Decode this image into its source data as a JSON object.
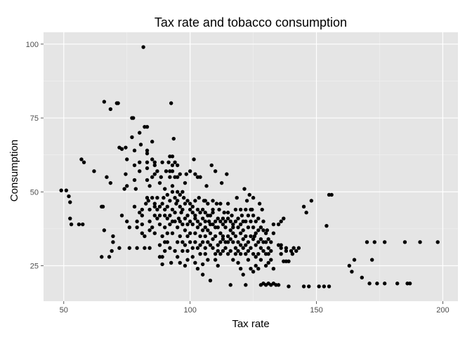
{
  "chart_data": {
    "type": "scatter",
    "title": "Tax rate and tobacco consumption",
    "xlabel": "Tax rate",
    "ylabel": "Consumption",
    "xlim": [
      42,
      206
    ],
    "ylim": [
      13,
      104
    ],
    "xticks": [
      50,
      100,
      150,
      200
    ],
    "yticks": [
      25,
      50,
      75,
      100
    ],
    "x_tick_labels": [
      "50",
      "100",
      "150",
      "200"
    ],
    "y_tick_labels": [
      "25",
      "50",
      "75",
      "100"
    ],
    "grid": true,
    "legend": "none",
    "colors": {
      "panel": "#e5e5e5",
      "grid_major": "#ffffff",
      "grid_minor": "#f2f2f2",
      "point": "#000000",
      "tick_text": "#4d4d4d"
    },
    "points": [
      [
        49,
        50.5
      ],
      [
        51,
        50.5
      ],
      [
        52,
        48.5
      ],
      [
        52.5,
        46.5
      ],
      [
        52.5,
        41
      ],
      [
        53,
        39
      ],
      [
        56,
        39
      ],
      [
        57,
        61
      ],
      [
        58,
        60
      ],
      [
        57.5,
        39
      ],
      [
        62,
        57
      ],
      [
        65,
        45
      ],
      [
        65.5,
        45
      ],
      [
        65,
        28
      ],
      [
        66,
        80.5
      ],
      [
        66,
        37
      ],
      [
        67,
        55
      ],
      [
        68,
        28
      ],
      [
        68.5,
        78
      ],
      [
        69,
        30
      ],
      [
        68.5,
        53
      ],
      [
        69.5,
        35
      ],
      [
        69.5,
        33
      ],
      [
        71,
        80
      ],
      [
        71.5,
        80
      ],
      [
        72,
        31
      ],
      [
        72,
        65
      ],
      [
        73,
        42
      ],
      [
        73,
        64.5
      ],
      [
        74,
        51
      ],
      [
        74.5,
        65
      ],
      [
        74.5,
        56
      ],
      [
        75,
        52
      ],
      [
        75,
        61
      ],
      [
        75,
        40
      ],
      [
        76,
        38
      ],
      [
        76,
        31
      ],
      [
        77,
        75
      ],
      [
        77.5,
        75
      ],
      [
        77,
        68.5
      ],
      [
        78,
        59
      ],
      [
        78,
        64
      ],
      [
        78,
        45
      ],
      [
        78,
        54
      ],
      [
        78.5,
        51
      ],
      [
        79,
        40
      ],
      [
        79,
        31
      ],
      [
        79,
        38
      ],
      [
        80,
        43
      ],
      [
        80,
        60
      ],
      [
        80,
        57
      ],
      [
        80,
        70
      ],
      [
        80.5,
        66
      ],
      [
        81,
        44
      ],
      [
        81,
        42
      ],
      [
        81,
        36
      ],
      [
        81,
        39
      ],
      [
        81.5,
        99
      ],
      [
        82,
        31
      ],
      [
        82,
        35
      ],
      [
        82,
        72
      ],
      [
        82.5,
        46
      ],
      [
        83,
        63
      ],
      [
        83,
        64
      ],
      [
        83,
        72
      ],
      [
        83,
        60
      ],
      [
        83,
        58
      ],
      [
        83,
        54
      ],
      [
        83,
        48
      ],
      [
        83.5,
        47
      ],
      [
        84,
        44
      ],
      [
        84,
        52
      ],
      [
        84,
        40
      ],
      [
        84,
        37
      ],
      [
        84,
        31
      ],
      [
        85,
        48
      ],
      [
        85,
        55
      ],
      [
        85,
        61
      ],
      [
        85,
        67
      ],
      [
        85,
        38
      ],
      [
        86,
        46
      ],
      [
        86,
        42
      ],
      [
        86,
        60
      ],
      [
        86,
        59
      ],
      [
        86,
        56
      ],
      [
        86,
        36
      ],
      [
        86,
        45
      ],
      [
        87,
        48
      ],
      [
        87,
        44
      ],
      [
        87,
        41
      ],
      [
        87,
        57
      ],
      [
        88,
        53
      ],
      [
        88,
        45
      ],
      [
        88,
        42
      ],
      [
        88,
        39
      ],
      [
        88,
        32
      ],
      [
        88,
        28
      ],
      [
        88.5,
        55
      ],
      [
        89,
        35
      ],
      [
        89,
        28
      ],
      [
        89,
        25.5
      ],
      [
        89,
        46
      ],
      [
        89,
        60
      ],
      [
        89.5,
        48
      ],
      [
        90,
        44
      ],
      [
        90,
        51
      ],
      [
        90,
        42
      ],
      [
        90,
        38
      ],
      [
        90,
        33
      ],
      [
        90,
        30
      ],
      [
        90.5,
        57
      ],
      [
        91,
        49
      ],
      [
        91,
        45
      ],
      [
        91,
        41
      ],
      [
        91,
        36
      ],
      [
        91,
        33
      ],
      [
        91.5,
        60
      ],
      [
        92,
        62
      ],
      [
        92,
        55
      ],
      [
        92,
        47
      ],
      [
        92,
        42
      ],
      [
        92,
        39
      ],
      [
        92,
        57
      ],
      [
        92,
        31
      ],
      [
        92.5,
        80
      ],
      [
        92.5,
        26
      ],
      [
        93,
        62
      ],
      [
        93,
        57
      ],
      [
        93,
        59
      ],
      [
        93,
        52
      ],
      [
        93,
        50
      ],
      [
        93,
        44
      ],
      [
        93,
        40
      ],
      [
        93,
        36
      ],
      [
        93.5,
        68
      ],
      [
        94,
        60
      ],
      [
        94,
        55
      ],
      [
        94,
        48
      ],
      [
        94,
        43
      ],
      [
        94,
        40
      ],
      [
        94,
        30
      ],
      [
        94.5,
        46
      ],
      [
        95,
        59
      ],
      [
        95,
        55
      ],
      [
        95,
        50
      ],
      [
        95,
        47
      ],
      [
        95,
        38
      ],
      [
        95,
        33
      ],
      [
        95,
        28
      ],
      [
        95.5,
        41
      ],
      [
        96,
        56
      ],
      [
        96,
        49
      ],
      [
        96,
        45
      ],
      [
        96,
        40
      ],
      [
        96,
        35
      ],
      [
        96,
        26
      ],
      [
        96.5,
        43
      ],
      [
        97,
        50
      ],
      [
        97,
        44
      ],
      [
        97,
        39
      ],
      [
        97,
        33
      ],
      [
        97,
        30
      ],
      [
        97.5,
        48
      ],
      [
        98,
        53
      ],
      [
        98,
        46
      ],
      [
        98,
        41
      ],
      [
        98,
        37
      ],
      [
        98,
        25
      ],
      [
        98,
        32
      ],
      [
        98.5,
        56
      ],
      [
        99,
        47
      ],
      [
        99,
        42
      ],
      [
        99,
        39
      ],
      [
        99,
        35
      ],
      [
        99,
        30
      ],
      [
        99,
        27
      ],
      [
        100,
        40
      ],
      [
        100,
        44
      ],
      [
        100,
        57
      ],
      [
        100,
        36
      ],
      [
        100,
        33
      ],
      [
        100,
        46
      ],
      [
        101,
        39
      ],
      [
        101,
        43
      ],
      [
        101,
        31
      ],
      [
        101,
        28
      ],
      [
        101,
        45
      ],
      [
        101.5,
        61
      ],
      [
        102,
        56
      ],
      [
        102,
        47
      ],
      [
        102,
        41
      ],
      [
        102,
        36
      ],
      [
        102,
        33
      ],
      [
        102,
        26
      ],
      [
        102,
        42
      ],
      [
        103,
        55
      ],
      [
        103,
        44
      ],
      [
        103,
        40
      ],
      [
        103,
        38
      ],
      [
        103,
        31
      ],
      [
        103,
        24
      ],
      [
        103.5,
        48
      ],
      [
        104,
        55
      ],
      [
        104,
        43
      ],
      [
        104,
        39
      ],
      [
        104,
        35
      ],
      [
        104,
        32
      ],
      [
        104,
        29
      ],
      [
        105,
        44
      ],
      [
        105,
        41
      ],
      [
        105,
        37
      ],
      [
        105,
        33
      ],
      [
        105,
        25.5
      ],
      [
        105,
        22
      ],
      [
        105.5,
        47
      ],
      [
        106,
        47
      ],
      [
        106,
        43
      ],
      [
        106,
        40
      ],
      [
        106,
        38
      ],
      [
        106,
        35
      ],
      [
        106,
        31
      ],
      [
        106,
        29
      ],
      [
        106.5,
        52
      ],
      [
        107,
        46
      ],
      [
        107,
        42
      ],
      [
        107,
        37
      ],
      [
        107,
        33
      ],
      [
        107,
        27
      ],
      [
        107.5,
        40
      ],
      [
        108,
        42
      ],
      [
        108,
        39
      ],
      [
        108,
        36
      ],
      [
        108,
        32
      ],
      [
        108,
        20
      ],
      [
        108.5,
        59
      ],
      [
        109,
        47
      ],
      [
        109,
        43
      ],
      [
        109,
        39
      ],
      [
        109,
        34
      ],
      [
        109,
        31
      ],
      [
        109,
        44
      ],
      [
        110,
        57
      ],
      [
        110,
        40
      ],
      [
        110,
        38
      ],
      [
        110,
        35
      ],
      [
        110,
        29
      ],
      [
        110,
        27
      ],
      [
        110.5,
        46
      ],
      [
        111,
        41
      ],
      [
        111,
        38
      ],
      [
        111,
        32
      ],
      [
        111,
        30
      ],
      [
        111,
        25
      ],
      [
        111.5,
        44
      ],
      [
        112,
        46
      ],
      [
        112,
        40
      ],
      [
        112,
        36
      ],
      [
        112,
        33
      ],
      [
        112,
        29
      ],
      [
        112.5,
        53
      ],
      [
        113,
        41
      ],
      [
        113,
        39
      ],
      [
        113,
        34
      ],
      [
        113,
        30
      ],
      [
        113,
        35
      ],
      [
        113.5,
        43
      ],
      [
        114,
        40
      ],
      [
        114,
        38
      ],
      [
        114,
        33
      ],
      [
        114,
        31
      ],
      [
        114.5,
        56
      ],
      [
        115,
        46
      ],
      [
        115,
        41
      ],
      [
        115,
        35
      ],
      [
        115,
        33
      ],
      [
        115,
        29
      ],
      [
        115,
        43
      ],
      [
        116,
        40
      ],
      [
        116,
        37
      ],
      [
        116,
        34
      ],
      [
        116,
        30
      ],
      [
        116,
        18.5
      ],
      [
        116.5,
        42
      ],
      [
        117,
        39
      ],
      [
        117,
        36
      ],
      [
        117,
        33
      ],
      [
        117,
        27
      ],
      [
        117,
        38
      ],
      [
        118,
        44
      ],
      [
        118,
        40
      ],
      [
        118,
        35
      ],
      [
        118,
        31
      ],
      [
        118,
        29
      ],
      [
        118.5,
        48
      ],
      [
        119,
        41
      ],
      [
        119,
        38
      ],
      [
        119,
        33
      ],
      [
        119,
        30
      ],
      [
        119,
        26
      ],
      [
        120,
        44
      ],
      [
        120,
        39
      ],
      [
        120,
        36
      ],
      [
        120,
        32
      ],
      [
        120,
        29
      ],
      [
        120,
        24
      ],
      [
        120.5,
        42
      ],
      [
        121,
        40
      ],
      [
        121,
        37
      ],
      [
        121,
        34
      ],
      [
        121,
        31
      ],
      [
        121,
        22
      ],
      [
        121.5,
        51
      ],
      [
        122,
        44
      ],
      [
        122,
        40
      ],
      [
        122,
        35
      ],
      [
        122,
        32
      ],
      [
        122,
        29
      ],
      [
        122,
        18.5
      ],
      [
        122.5,
        47
      ],
      [
        123,
        42
      ],
      [
        123,
        38
      ],
      [
        123,
        33
      ],
      [
        123,
        30
      ],
      [
        123,
        27
      ],
      [
        123.5,
        49
      ],
      [
        124,
        44
      ],
      [
        124,
        40
      ],
      [
        124,
        35
      ],
      [
        124,
        31
      ],
      [
        124,
        24
      ],
      [
        124.5,
        44
      ],
      [
        125,
        48
      ],
      [
        125,
        42
      ],
      [
        125,
        38
      ],
      [
        125,
        34
      ],
      [
        125,
        29
      ],
      [
        125,
        23
      ],
      [
        125.5,
        35
      ],
      [
        126,
        40
      ],
      [
        126,
        36
      ],
      [
        126,
        32
      ],
      [
        126,
        28
      ],
      [
        126,
        25
      ],
      [
        127,
        41
      ],
      [
        127,
        37
      ],
      [
        127,
        33
      ],
      [
        127,
        29
      ],
      [
        127,
        24
      ],
      [
        127.5,
        46
      ],
      [
        128,
        38
      ],
      [
        128,
        34
      ],
      [
        128,
        31
      ],
      [
        128,
        27
      ],
      [
        128,
        18.5
      ],
      [
        128.5,
        44
      ],
      [
        129,
        40
      ],
      [
        129,
        37
      ],
      [
        129,
        33
      ],
      [
        129,
        30
      ],
      [
        129,
        19
      ],
      [
        130,
        36
      ],
      [
        130,
        33
      ],
      [
        130,
        29
      ],
      [
        130,
        25
      ],
      [
        130,
        18.5
      ],
      [
        130.5,
        37
      ],
      [
        131,
        34
      ],
      [
        131,
        31
      ],
      [
        131,
        29
      ],
      [
        131,
        26
      ],
      [
        131,
        19
      ],
      [
        132,
        33
      ],
      [
        132,
        30
      ],
      [
        132,
        27
      ],
      [
        132,
        18.5
      ],
      [
        133,
        39
      ],
      [
        133,
        36
      ],
      [
        133,
        24
      ],
      [
        133,
        19
      ],
      [
        134,
        18.5
      ],
      [
        135,
        39
      ],
      [
        135,
        32
      ],
      [
        135,
        18.5
      ],
      [
        136,
        40
      ],
      [
        136,
        32
      ],
      [
        136,
        31
      ],
      [
        136,
        29
      ],
      [
        137,
        41
      ],
      [
        137,
        26.5
      ],
      [
        138,
        31
      ],
      [
        138,
        30
      ],
      [
        138,
        26.5
      ],
      [
        139,
        26.5
      ],
      [
        139,
        18
      ],
      [
        140,
        30
      ],
      [
        140.5,
        29
      ],
      [
        141,
        31
      ],
      [
        142,
        30
      ],
      [
        143,
        31
      ],
      [
        145,
        45
      ],
      [
        145,
        18
      ],
      [
        146,
        43
      ],
      [
        147,
        18
      ],
      [
        148,
        47
      ],
      [
        151,
        18
      ],
      [
        153,
        18
      ],
      [
        154,
        38.5
      ],
      [
        155,
        49
      ],
      [
        155,
        18
      ],
      [
        156,
        49
      ],
      [
        163,
        25
      ],
      [
        164,
        23
      ],
      [
        165,
        27
      ],
      [
        168,
        21
      ],
      [
        170,
        33
      ],
      [
        171,
        19
      ],
      [
        172,
        27
      ],
      [
        173,
        33
      ],
      [
        174,
        19
      ],
      [
        177,
        19
      ],
      [
        177,
        33
      ],
      [
        182,
        19
      ],
      [
        185,
        33
      ],
      [
        186,
        19
      ],
      [
        187,
        19
      ],
      [
        191,
        33
      ],
      [
        198,
        33
      ]
    ]
  }
}
